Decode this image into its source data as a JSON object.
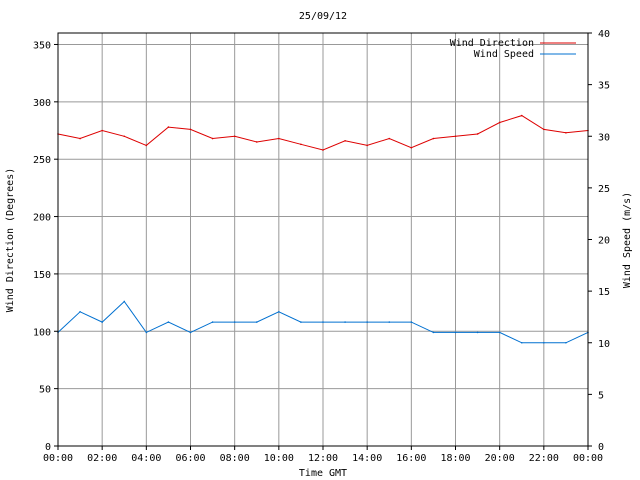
{
  "chart_data": {
    "type": "line",
    "title": "25/09/12",
    "xlabel": "Time GMT",
    "ylabel_left": "Wind Direction (Degrees)",
    "ylabel_right": "Wind Speed (m/s)",
    "x_ticks": [
      "00:00",
      "02:00",
      "04:00",
      "06:00",
      "08:00",
      "10:00",
      "12:00",
      "14:00",
      "16:00",
      "18:00",
      "20:00",
      "22:00",
      "00:00"
    ],
    "x_range_hours": [
      0,
      24
    ],
    "ylim_left": [
      0,
      360
    ],
    "yticks_left": [
      0,
      50,
      100,
      150,
      200,
      250,
      300,
      350
    ],
    "ylim_right": [
      0,
      40
    ],
    "yticks_right": [
      0,
      5,
      10,
      15,
      20,
      25,
      30,
      35,
      40
    ],
    "grid": true,
    "legend_position": "top-right",
    "series": [
      {
        "name": "Wind Direction",
        "axis": "left",
        "color": "#dd0000",
        "x": [
          0,
          1,
          2,
          3,
          4,
          5,
          6,
          7,
          8,
          9,
          10,
          11,
          12,
          13,
          14,
          15,
          16,
          17,
          18,
          19,
          20,
          21,
          22,
          23,
          24
        ],
        "y": [
          272,
          268,
          275,
          270,
          262,
          278,
          276,
          268,
          270,
          265,
          268,
          263,
          258,
          266,
          262,
          268,
          260,
          268,
          270,
          272,
          282,
          288,
          276,
          273,
          275
        ]
      },
      {
        "name": "Wind Speed",
        "axis": "right",
        "color": "#0070d0",
        "x": [
          0,
          1,
          2,
          3,
          4,
          5,
          6,
          7,
          8,
          9,
          10,
          11,
          12,
          13,
          14,
          15,
          16,
          17,
          18,
          19,
          20,
          21,
          22,
          23,
          24
        ],
        "y": [
          11,
          13,
          12,
          14,
          11,
          12,
          11,
          12,
          12,
          12,
          13,
          12,
          12,
          12,
          12,
          12,
          12,
          11,
          11,
          11,
          11,
          10,
          10,
          10,
          11
        ]
      }
    ]
  }
}
